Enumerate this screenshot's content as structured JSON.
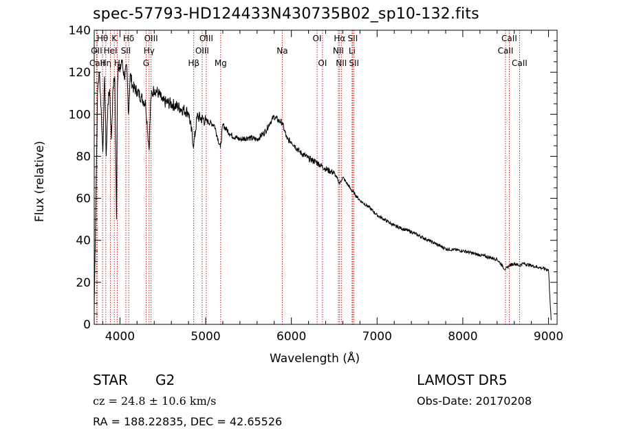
{
  "title": "spec-57793-HD124433N430735B02_sp10-132.fits",
  "info": {
    "object_class": "STAR",
    "subclass": "G2",
    "survey": "LAMOST DR5",
    "cz": "cz = 24.8 ± 10.6 km/s",
    "obs_date": "Obs-Date: 20170208",
    "radec": "RA = 188.22835, DEC =  42.65526"
  },
  "colors": {
    "spectrum": "#000000",
    "lines": "#c00000",
    "axes": "#000000",
    "background": "#ffffff"
  },
  "chart_data": {
    "type": "line",
    "xlabel": "Wavelength (Å)",
    "ylabel": "Flux (relative)",
    "xlim": [
      3700,
      9100
    ],
    "ylim": [
      0,
      140
    ],
    "xticks": [
      4000,
      5000,
      6000,
      7000,
      8000,
      9000
    ],
    "yticks": [
      0,
      20,
      40,
      60,
      80,
      100,
      120,
      140
    ],
    "grid": false,
    "series": [
      {
        "x": [
          3700,
          3720,
          3740,
          3760,
          3780,
          3800,
          3820,
          3840,
          3860,
          3880,
          3900,
          3920,
          3940,
          3960,
          3970,
          3980,
          4000,
          4020,
          4050,
          4080,
          4100,
          4120,
          4150,
          4200,
          4250,
          4300,
          4340,
          4360,
          4400,
          4450,
          4500,
          4600,
          4700,
          4800,
          4861,
          4900,
          5000,
          5100,
          5172,
          5200,
          5300,
          5400,
          5500,
          5600,
          5700,
          5750,
          5800,
          5850,
          5893,
          5950,
          6000,
          6100,
          6200,
          6300,
          6400,
          6500,
          6563,
          6600,
          6700,
          6800,
          6900,
          7000,
          7200,
          7400,
          7600,
          7800,
          8000,
          8200,
          8400,
          8498,
          8542,
          8600,
          8662,
          8700,
          8800,
          8900,
          9000,
          9030
        ],
        "y": [
          8,
          62,
          112,
          120,
          103,
          82,
          118,
          80,
          105,
          112,
          88,
          113,
          118,
          50,
          112,
          124,
          120,
          126,
          118,
          122,
          100,
          119,
          113,
          111,
          108,
          105,
          83,
          108,
          112,
          110,
          106,
          105,
          103,
          101,
          85,
          99,
          97,
          95,
          84,
          95,
          90,
          88,
          89,
          88,
          92,
          96,
          99,
          97,
          96,
          88,
          87,
          82,
          79,
          77,
          74,
          72,
          67,
          70,
          64,
          59,
          56,
          52,
          47,
          44,
          40,
          36,
          35,
          33,
          31,
          26,
          28,
          29,
          28,
          29,
          28,
          27,
          26,
          2
        ]
      }
    ],
    "lines": [
      {
        "label": "OII",
        "x": 3727,
        "row": 1
      },
      {
        "label": "CaII",
        "x": 3734,
        "row": 2
      },
      {
        "label": "Hθ",
        "x": 3797,
        "row": 0
      },
      {
        "label": "Hη",
        "x": 3835,
        "row": 2
      },
      {
        "label": "HeI",
        "x": 3889,
        "row": 1
      },
      {
        "label": "K",
        "x": 3934,
        "row": 0
      },
      {
        "label": "H",
        "x": 3968,
        "row": 2
      },
      {
        "label": "SII",
        "x": 4069,
        "row": 1
      },
      {
        "label": "Hδ",
        "x": 4102,
        "row": 0
      },
      {
        "label": "G",
        "x": 4305,
        "row": 2
      },
      {
        "label": "Hγ",
        "x": 4340,
        "row": 1
      },
      {
        "label": "OIII",
        "x": 4363,
        "row": 0
      },
      {
        "label": "Hβ",
        "x": 4861,
        "row": 2
      },
      {
        "label": "OIII",
        "x": 4959,
        "row": 1
      },
      {
        "label": "OIII",
        "x": 5007,
        "row": 0
      },
      {
        "label": "Mg",
        "x": 5175,
        "row": 2
      },
      {
        "label": "Na",
        "x": 5894,
        "row": 1
      },
      {
        "label": "OI",
        "x": 6300,
        "row": 0
      },
      {
        "label": "OI",
        "x": 6363,
        "row": 2
      },
      {
        "label": "NII",
        "x": 6548,
        "row": 1
      },
      {
        "label": "Hα",
        "x": 6563,
        "row": 0
      },
      {
        "label": "NII",
        "x": 6583,
        "row": 2
      },
      {
        "label": "Li",
        "x": 6708,
        "row": 1
      },
      {
        "label": "SII",
        "x": 6716,
        "row": 0
      },
      {
        "label": "SII",
        "x": 6731,
        "row": 2
      },
      {
        "label": "CaII",
        "x": 8498,
        "row": 1
      },
      {
        "label": "CaII",
        "x": 8542,
        "row": 0
      },
      {
        "label": "CaII",
        "x": 8662,
        "row": 2
      }
    ]
  }
}
